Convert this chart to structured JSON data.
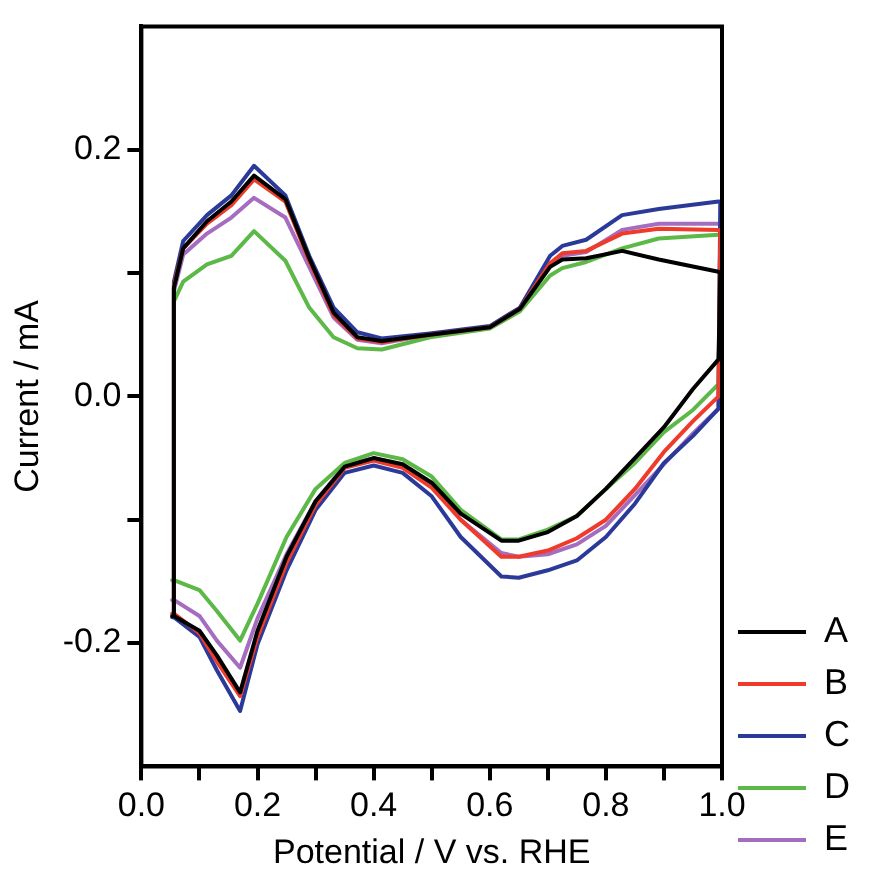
{
  "chart_data": {
    "type": "line",
    "xlabel": "Potential / V vs. RHE",
    "ylabel": "Current / mA",
    "series": [
      {
        "name": "A",
        "color": "#000000",
        "x": [
          0.053,
          0.056,
          0.072,
          0.113,
          0.155,
          0.194,
          0.248,
          0.289,
          0.331,
          0.372,
          0.414,
          0.497,
          0.6,
          0.652,
          0.704,
          0.725,
          0.766,
          0.828,
          0.891,
          0.994
        ],
        "values": [
          -0.178,
          0.088,
          0.12,
          0.142,
          0.158,
          0.179,
          0.16,
          0.112,
          0.068,
          0.048,
          0.045,
          0.05,
          0.056,
          0.071,
          0.105,
          0.111,
          0.112,
          0.118,
          0.111,
          0.101
        ]
      },
      {
        "color": "#000000",
        "x": [
          0.056,
          0.1,
          0.13,
          0.17,
          0.2,
          0.25,
          0.3,
          0.35,
          0.4,
          0.45,
          0.5,
          0.55,
          0.62,
          0.65,
          0.7,
          0.75,
          0.8,
          0.85,
          0.9,
          0.95,
          0.994,
          0.997
        ],
        "values": [
          -0.178,
          -0.19,
          -0.21,
          -0.24,
          -0.19,
          -0.13,
          -0.085,
          -0.057,
          -0.05,
          -0.055,
          -0.07,
          -0.095,
          -0.117,
          -0.117,
          -0.11,
          -0.097,
          -0.075,
          -0.05,
          -0.025,
          0.006,
          0.03,
          0.101
        ]
      },
      {
        "name": "B",
        "color": "#ee3b2b",
        "x": [
          0.053,
          0.056,
          0.072,
          0.113,
          0.155,
          0.194,
          0.248,
          0.289,
          0.331,
          0.372,
          0.414,
          0.497,
          0.6,
          0.652,
          0.704,
          0.725,
          0.766,
          0.828,
          0.891,
          0.994
        ],
        "values": [
          -0.176,
          0.09,
          0.12,
          0.14,
          0.155,
          0.176,
          0.158,
          0.11,
          0.066,
          0.047,
          0.044,
          0.05,
          0.056,
          0.071,
          0.108,
          0.116,
          0.118,
          0.132,
          0.136,
          0.135
        ]
      },
      {
        "color": "#ee3b2b",
        "x": [
          0.056,
          0.1,
          0.13,
          0.17,
          0.2,
          0.25,
          0.3,
          0.35,
          0.4,
          0.45,
          0.5,
          0.55,
          0.62,
          0.65,
          0.7,
          0.75,
          0.8,
          0.85,
          0.9,
          0.95,
          0.994,
          0.997
        ],
        "values": [
          -0.176,
          -0.192,
          -0.215,
          -0.243,
          -0.195,
          -0.135,
          -0.088,
          -0.058,
          -0.052,
          -0.058,
          -0.074,
          -0.1,
          -0.13,
          -0.13,
          -0.125,
          -0.115,
          -0.1,
          -0.075,
          -0.045,
          -0.02,
          0.0,
          0.135
        ]
      },
      {
        "name": "C",
        "color": "#2b3a98",
        "x": [
          0.053,
          0.056,
          0.072,
          0.113,
          0.155,
          0.194,
          0.248,
          0.289,
          0.331,
          0.372,
          0.414,
          0.497,
          0.6,
          0.652,
          0.704,
          0.725,
          0.766,
          0.828,
          0.891,
          0.994
        ],
        "values": [
          -0.179,
          0.093,
          0.126,
          0.147,
          0.163,
          0.187,
          0.163,
          0.114,
          0.072,
          0.052,
          0.047,
          0.051,
          0.057,
          0.072,
          0.114,
          0.122,
          0.127,
          0.147,
          0.152,
          0.158
        ]
      },
      {
        "color": "#2b3a98",
        "x": [
          0.056,
          0.1,
          0.13,
          0.17,
          0.2,
          0.25,
          0.3,
          0.35,
          0.4,
          0.45,
          0.5,
          0.55,
          0.62,
          0.65,
          0.7,
          0.75,
          0.8,
          0.85,
          0.9,
          0.95,
          0.994,
          0.997
        ],
        "values": [
          -0.179,
          -0.195,
          -0.222,
          -0.255,
          -0.201,
          -0.141,
          -0.092,
          -0.062,
          -0.056,
          -0.062,
          -0.081,
          -0.114,
          -0.146,
          -0.147,
          -0.141,
          -0.133,
          -0.114,
          -0.087,
          -0.054,
          -0.032,
          -0.01,
          0.158
        ]
      },
      {
        "name": "D",
        "color": "#5cb847",
        "x": [
          0.053,
          0.056,
          0.072,
          0.113,
          0.155,
          0.194,
          0.248,
          0.289,
          0.331,
          0.372,
          0.414,
          0.497,
          0.6,
          0.652,
          0.704,
          0.725,
          0.766,
          0.828,
          0.891,
          0.994
        ],
        "values": [
          -0.149,
          0.077,
          0.093,
          0.107,
          0.114,
          0.134,
          0.11,
          0.072,
          0.048,
          0.039,
          0.038,
          0.048,
          0.055,
          0.069,
          0.098,
          0.104,
          0.109,
          0.12,
          0.128,
          0.131
        ]
      },
      {
        "color": "#5cb847",
        "x": [
          0.056,
          0.1,
          0.13,
          0.17,
          0.2,
          0.25,
          0.3,
          0.35,
          0.4,
          0.45,
          0.5,
          0.55,
          0.62,
          0.65,
          0.7,
          0.75,
          0.8,
          0.85,
          0.9,
          0.95,
          0.994,
          0.997
        ],
        "values": [
          -0.149,
          -0.157,
          -0.174,
          -0.198,
          -0.168,
          -0.114,
          -0.075,
          -0.054,
          -0.046,
          -0.051,
          -0.065,
          -0.092,
          -0.116,
          -0.116,
          -0.108,
          -0.097,
          -0.075,
          -0.054,
          -0.029,
          -0.011,
          0.01,
          0.131
        ]
      },
      {
        "name": "E",
        "color": "#a56dc0",
        "x": [
          0.053,
          0.056,
          0.072,
          0.113,
          0.155,
          0.194,
          0.248,
          0.289,
          0.331,
          0.372,
          0.414,
          0.497,
          0.6,
          0.652,
          0.704,
          0.725,
          0.766,
          0.828,
          0.891,
          0.994
        ],
        "values": [
          -0.165,
          0.085,
          0.115,
          0.132,
          0.145,
          0.161,
          0.145,
          0.105,
          0.064,
          0.046,
          0.043,
          0.05,
          0.056,
          0.071,
          0.108,
          0.114,
          0.117,
          0.135,
          0.14,
          0.14
        ]
      },
      {
        "color": "#a56dc0",
        "x": [
          0.056,
          0.1,
          0.13,
          0.17,
          0.2,
          0.25,
          0.3,
          0.35,
          0.4,
          0.45,
          0.5,
          0.55,
          0.62,
          0.65,
          0.7,
          0.75,
          0.8,
          0.85,
          0.9,
          0.95,
          0.994,
          0.997
        ],
        "values": [
          -0.165,
          -0.178,
          -0.198,
          -0.22,
          -0.18,
          -0.128,
          -0.085,
          -0.056,
          -0.05,
          -0.056,
          -0.072,
          -0.1,
          -0.127,
          -0.13,
          -0.128,
          -0.12,
          -0.105,
          -0.08,
          -0.055,
          -0.03,
          -0.01,
          0.14
        ]
      }
    ],
    "xlim": [
      0,
      1.0
    ],
    "ylim": [
      -0.3,
      0.3
    ],
    "xticks": [
      {
        "value": 0,
        "label": "0.0"
      },
      {
        "value": 0.1,
        "label": null
      },
      {
        "value": 0.2,
        "label": "0.2"
      },
      {
        "value": 0.3,
        "label": null
      },
      {
        "value": 0.4,
        "label": "0.4"
      },
      {
        "value": 0.5,
        "label": null
      },
      {
        "value": 0.6,
        "label": "0.6"
      },
      {
        "value": 0.7,
        "label": null
      },
      {
        "value": 0.8,
        "label": "0.8"
      },
      {
        "value": 0.9,
        "label": null
      },
      {
        "value": 1.0,
        "label": "1.0"
      }
    ],
    "yticks": [
      {
        "value": -0.2,
        "label": "-0.2"
      },
      {
        "value": -0.1,
        "label": null
      },
      {
        "value": 0,
        "label": "0.0"
      },
      {
        "value": 0.1,
        "label": null
      },
      {
        "value": 0.2,
        "label": "0.2"
      }
    ],
    "grid": false,
    "legend": "right",
    "marker": "none",
    "line_style": "solid"
  }
}
